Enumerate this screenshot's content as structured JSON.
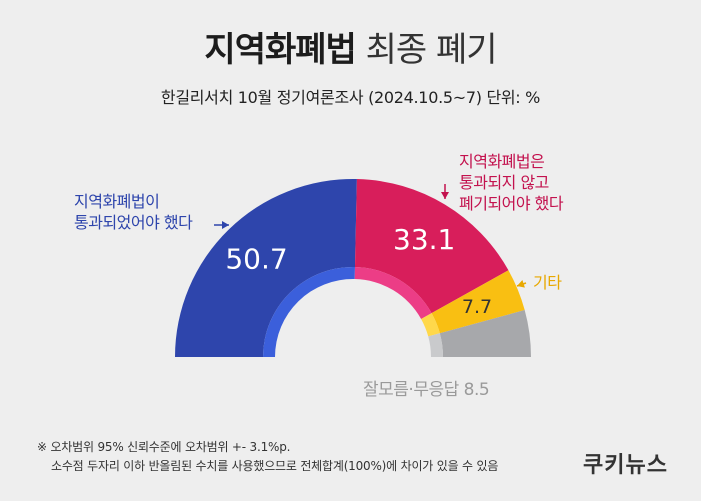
{
  "header": {
    "title_strong": "지역화폐법",
    "title_light": "최종 폐기",
    "subtitle": "한길리서치 10월 정기여론조사 (2024.10.5~7) 단위: %"
  },
  "chart_data": {
    "type": "pie",
    "variant": "half-donut",
    "title": "지역화폐법 최종 폐기",
    "subtitle": "한길리서치 10월 정기여론조사 (2024.10.5~7) 단위: %",
    "unit": "%",
    "slices": [
      {
        "label": "지역화폐법이 통과되었어야 했다",
        "value": 50.7,
        "color": "#2e45ac",
        "label_color": "#2e45ac"
      },
      {
        "label": "지역화폐법은 통과되지 않고 폐기되어야 했다",
        "value": 33.1,
        "color": "#d81e5b",
        "label_color": "#c3124e"
      },
      {
        "label": "기타",
        "value": 7.7,
        "color": "#f9bf12",
        "label_color": "#e8a800"
      },
      {
        "label": "잘모름·무응답",
        "value": 8.5,
        "color": "#a7a8ab",
        "label_color": "#9a9a9a"
      }
    ],
    "inner_ring_colors": [
      "#3b5fdb",
      "#ec3d86",
      "#ffd84a",
      "#c9cacc"
    ]
  },
  "annotations": {
    "passed_line1": "지역화폐법이",
    "passed_line2": "통과되었어야 했다",
    "scrapped_line1": "지역화폐법은",
    "scrapped_line2": "통과되지 않고",
    "scrapped_line3": "폐기되어야 했다",
    "other": "기타",
    "dontknow": "잘모름·무응답 8.5"
  },
  "footnote": {
    "line1": "※ 오차범위 95% 신뢰수준에 오차범위 +- 3.1%p.",
    "line2": "소수점 두자리 이하 반올림된 수치를 사용했으므로 전체합계(100%)에 차이가 있을 수 있음"
  },
  "brand": "쿠키뉴스"
}
